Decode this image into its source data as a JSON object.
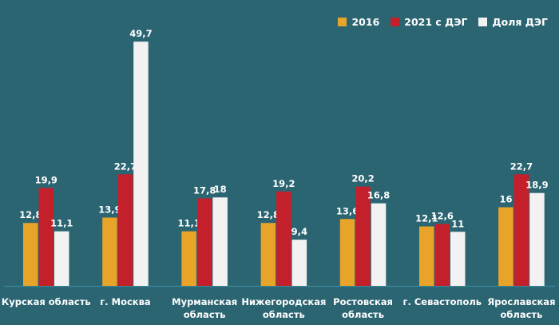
{
  "chart_data": {
    "type": "bar",
    "title": "",
    "xlabel": "",
    "ylabel": "",
    "ylim": [
      0,
      52
    ],
    "grid": false,
    "legend_position": "top-right",
    "categories": [
      [
        "Курская область"
      ],
      [
        "г. Москва"
      ],
      [
        "Мурманская",
        "область"
      ],
      [
        "Нижегородская",
        "область"
      ],
      [
        "Ростовская",
        "область"
      ],
      [
        "г. Севастополь"
      ],
      [
        "Ярославская",
        "область"
      ]
    ],
    "series": [
      {
        "name": "2016",
        "color": "#e8a329",
        "values": [
          12.8,
          13.9,
          11.1,
          12.8,
          13.6,
          12.1,
          16
        ],
        "labels": [
          "12,8",
          "13,9",
          "11,1",
          "12,8",
          "13,6",
          "12,1",
          "16"
        ]
      },
      {
        "name": "2021 с ДЭГ",
        "color": "#c4202b",
        "values": [
          19.9,
          22.7,
          17.8,
          19.2,
          20.2,
          12.6,
          22.7
        ],
        "labels": [
          "19,9",
          "22,7",
          "17,8",
          "19,2",
          "20,2",
          "12,6",
          "22,7"
        ]
      },
      {
        "name": "Доля ДЭГ",
        "color": "#f2f2f2",
        "values": [
          11.1,
          49.7,
          18,
          9.4,
          16.8,
          11,
          18.9
        ],
        "labels": [
          "11,1",
          "49,7",
          "18",
          "9,4",
          "16,8",
          "11",
          "18,9"
        ]
      }
    ]
  }
}
